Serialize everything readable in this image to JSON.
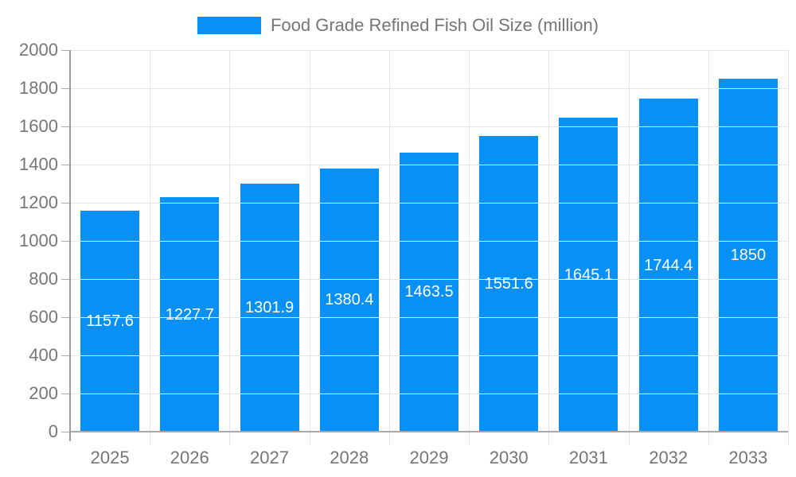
{
  "chart_data": {
    "type": "bar",
    "title": "Food Grade Refined Fish Oil Size (million)",
    "legend": {
      "position": "top",
      "label": "Food Grade Refined Fish Oil Size (million)"
    },
    "categories": [
      "2025",
      "2026",
      "2027",
      "2028",
      "2029",
      "2030",
      "2031",
      "2032",
      "2033"
    ],
    "series": [
      {
        "name": "Food Grade Refined Fish Oil Size (million)",
        "values": [
          1157.6,
          1227.7,
          1301.9,
          1380.4,
          1463.5,
          1551.6,
          1645.1,
          1744.4,
          1850
        ],
        "value_labels": [
          "1157.6",
          "1227.7",
          "1301.9",
          "1380.4",
          "1463.5",
          "1551.6",
          "1645.1",
          "1744.4",
          "1850"
        ]
      }
    ],
    "xlabel": "",
    "ylabel": "",
    "ylim": [
      0,
      2000
    ],
    "ytick_step": 200,
    "ytick_labels": [
      "0",
      "200",
      "400",
      "600",
      "800",
      "1000",
      "1200",
      "1400",
      "1600",
      "1800",
      "2000"
    ],
    "grid": true,
    "colors": {
      "bar": "#0791f7",
      "bar_value_text": "#ffffff",
      "axis_text": "#757575",
      "grid_line": "#e6e6e6",
      "axis_line": "#a9a9a9",
      "background": "#ffffff"
    }
  }
}
